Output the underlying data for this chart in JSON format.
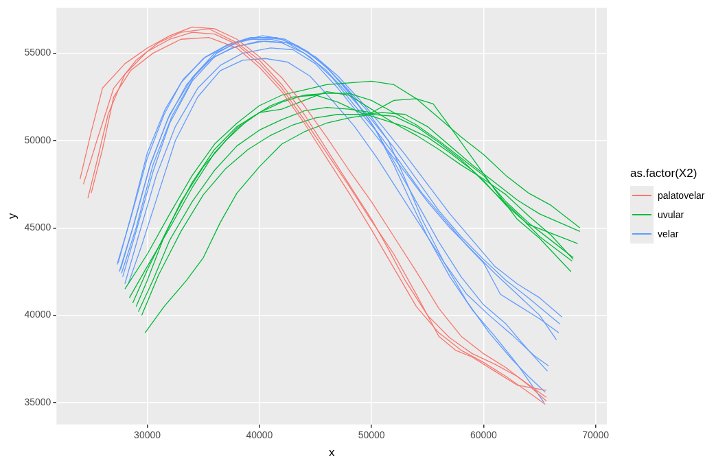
{
  "chart_data": {
    "type": "line",
    "xlabel": "x",
    "ylabel": "y",
    "legend_title": "as.factor(X2)",
    "legend": "right",
    "grid": true,
    "marker": "none",
    "line_style": "solid",
    "xlim": [
      21900,
      71000
    ],
    "ylim": [
      33750,
      57600
    ],
    "xticks": [
      30000,
      40000,
      50000,
      60000,
      70000
    ],
    "yticks": [
      35000,
      40000,
      45000,
      50000,
      55000
    ],
    "series": [
      {
        "name": "palatovelar",
        "color": "#f8766d",
        "x": [
          24000,
          25000,
          26000,
          28000,
          30000,
          32000,
          34000,
          36000,
          38000,
          40000,
          42000,
          44000,
          46000,
          48000,
          50000,
          52000,
          54000,
          56000,
          58000,
          60000,
          62000,
          64000,
          65600
        ],
        "values": [
          47800,
          50500,
          53000,
          54400,
          55300,
          56000,
          56500,
          56400,
          55800,
          54800,
          53600,
          52000,
          50200,
          48300,
          46500,
          44500,
          42500,
          40400,
          38800,
          37800,
          37000,
          36000,
          35100
        ]
      },
      {
        "color": "#f8766d",
        "x": [
          24300,
          25500,
          27000,
          29000,
          31000,
          33000,
          35500,
          38000,
          40000,
          42000,
          44000,
          46000,
          48000,
          50000,
          51500,
          53000,
          55000,
          57000,
          59000,
          61000,
          63000,
          65600
        ],
        "values": [
          47500,
          50000,
          53000,
          54600,
          55600,
          56200,
          56400,
          55600,
          54600,
          53200,
          51500,
          49500,
          47500,
          45500,
          43800,
          42000,
          40000,
          38700,
          37800,
          37200,
          36500,
          35300
        ]
      },
      {
        "color": "#f8766d",
        "x": [
          24700,
          25500,
          26500,
          28000,
          30000,
          32000,
          34000,
          36000,
          38000,
          40000,
          42000,
          44000,
          46000,
          48000,
          50000,
          52000,
          54000,
          56000,
          57500,
          59000,
          61000,
          63000,
          65600
        ],
        "values": [
          46700,
          48800,
          51500,
          53800,
          55100,
          55800,
          56200,
          56100,
          55500,
          54400,
          53000,
          51200,
          49300,
          47400,
          45400,
          43500,
          41200,
          38800,
          38000,
          37600,
          36800,
          36000,
          35700
        ]
      },
      {
        "color": "#f8766d",
        "x": [
          25000,
          26000,
          27000,
          28500,
          30500,
          33000,
          35500,
          38000,
          40000,
          42000,
          44000,
          46000,
          48000,
          50000,
          52000,
          54000,
          56000,
          58000,
          60000,
          62000,
          64000,
          65500
        ],
        "values": [
          47000,
          49500,
          52500,
          54000,
          55000,
          55800,
          55900,
          55300,
          54200,
          52800,
          51000,
          49000,
          47000,
          44900,
          42700,
          40500,
          39000,
          38000,
          37300,
          36500,
          35600,
          34900
        ]
      },
      {
        "name": "uvular",
        "color": "#00ba38",
        "x": [
          28000,
          30000,
          32000,
          34000,
          36000,
          38000,
          40000,
          42000,
          44000,
          46000,
          48000,
          50000,
          52000,
          54000,
          56000,
          58000,
          60000,
          62000,
          64000,
          66000,
          68600
        ],
        "values": [
          41500,
          43500,
          45800,
          48000,
          49800,
          51000,
          52000,
          52600,
          52900,
          53200,
          53300,
          53400,
          53200,
          52400,
          51300,
          50200,
          49200,
          48000,
          47000,
          46300,
          45000
        ]
      },
      {
        "color": "#00ba38",
        "x": [
          28400,
          30000,
          32000,
          34000,
          36000,
          38000,
          40000,
          42000,
          44000,
          46000,
          48000,
          50000,
          52000,
          54000,
          56000,
          58000,
          60000,
          62000,
          64000,
          66000,
          68000
        ],
        "values": [
          41000,
          42800,
          45000,
          47300,
          49300,
          50700,
          51600,
          52200,
          52600,
          52700,
          52700,
          52300,
          51600,
          50900,
          50000,
          49000,
          48000,
          46500,
          45300,
          44300,
          43300
        ]
      },
      {
        "color": "#00ba38",
        "x": [
          29000,
          30000,
          31500,
          33000,
          35000,
          37000,
          39000,
          41000,
          43000,
          45000,
          47000,
          49000,
          51000,
          53000,
          55000,
          57000,
          59000,
          61000,
          63000,
          65000,
          67900
        ],
        "values": [
          40500,
          42000,
          44500,
          46500,
          48500,
          50000,
          51200,
          52000,
          52500,
          52600,
          52200,
          51600,
          51200,
          50800,
          50200,
          49300,
          48300,
          47000,
          45800,
          44500,
          43100
        ]
      },
      {
        "color": "#00ba38",
        "x": [
          29200,
          30500,
          32000,
          34000,
          36000,
          38000,
          40000,
          42000,
          44000,
          46000,
          48000,
          50000,
          52000,
          54000,
          55500,
          57000,
          59000,
          61000,
          63000,
          65000,
          67800
        ],
        "values": [
          40200,
          42000,
          44300,
          46500,
          48300,
          49700,
          50600,
          51200,
          51700,
          51900,
          51800,
          51600,
          52300,
          52400,
          52100,
          50800,
          49000,
          47200,
          45500,
          44400,
          42500
        ]
      },
      {
        "color": "#00ba38",
        "x": [
          29500,
          31000,
          33000,
          35000,
          37000,
          39000,
          41000,
          43000,
          45000,
          47000,
          49000,
          51000,
          53000,
          55000,
          57000,
          59000,
          61000,
          63000,
          65000,
          68600
        ],
        "values": [
          40000,
          42300,
          44800,
          46900,
          48400,
          49500,
          50300,
          50900,
          51300,
          51500,
          51500,
          51600,
          51500,
          50800,
          49700,
          48600,
          47600,
          46600,
          45800,
          44800
        ]
      },
      {
        "color": "#00ba38",
        "x": [
          29800,
          31500,
          33500,
          35000,
          36500,
          38000,
          40000,
          42000,
          44000,
          46000,
          48000,
          50000,
          52000,
          54000,
          56000,
          58000,
          60000,
          62000,
          64000,
          66000,
          68400
        ],
        "values": [
          39000,
          40500,
          42000,
          43300,
          45300,
          47000,
          48500,
          49800,
          50500,
          51000,
          51300,
          51500,
          51400,
          50800,
          49900,
          48900,
          47700,
          46300,
          45200,
          44700,
          44100
        ]
      },
      {
        "color": "#00ba38",
        "x": [
          28700,
          30000,
          32000,
          34000,
          36000,
          38000,
          40000,
          42000,
          44000,
          46000,
          48000,
          50000,
          52000,
          54000,
          56000,
          58000,
          60000,
          62000,
          64000,
          66000,
          68000
        ],
        "values": [
          40700,
          42600,
          45200,
          47600,
          49500,
          50800,
          51600,
          51800,
          52300,
          52800,
          52600,
          51800,
          51000,
          50300,
          49500,
          48600,
          47800,
          46900,
          45700,
          44600,
          43200
        ]
      },
      {
        "name": "velar",
        "color": "#619cff",
        "x": [
          27300,
          28500,
          30000,
          31500,
          33000,
          35000,
          37000,
          39000,
          41000,
          43000,
          45000,
          47000,
          49000,
          51000,
          53000,
          55000,
          57000,
          59000,
          61000,
          63000,
          65000,
          67000
        ],
        "values": [
          42900,
          45500,
          49000,
          51500,
          53300,
          54700,
          55400,
          55800,
          55800,
          55500,
          54800,
          53700,
          52300,
          50800,
          49200,
          47500,
          45800,
          44300,
          42800,
          41800,
          41000,
          39900
        ]
      },
      {
        "color": "#619cff",
        "x": [
          27500,
          28700,
          30200,
          31800,
          33500,
          35500,
          37500,
          40000,
          42000,
          44000,
          46000,
          48000,
          50000,
          52000,
          54000,
          56000,
          58000,
          60000,
          62000,
          64000,
          66800
        ],
        "values": [
          42500,
          45000,
          48500,
          51200,
          53200,
          54600,
          55300,
          55700,
          55600,
          55000,
          54000,
          52600,
          51200,
          49600,
          47800,
          46000,
          44500,
          43200,
          42000,
          41000,
          39500
        ]
      },
      {
        "color": "#619cff",
        "x": [
          27800,
          29000,
          30500,
          32000,
          34000,
          36000,
          38000,
          40500,
          42500,
          44500,
          46500,
          48500,
          50500,
          52500,
          54500,
          56500,
          58500,
          60000,
          61500,
          63000,
          65000,
          66700
        ],
        "values": [
          42200,
          44800,
          48200,
          51000,
          53400,
          54800,
          55400,
          55700,
          55600,
          54800,
          53600,
          52000,
          50500,
          48800,
          47000,
          45500,
          44000,
          43000,
          41200,
          40600,
          39800,
          39000
        ]
      },
      {
        "color": "#619cff",
        "x": [
          28000,
          29200,
          30800,
          32500,
          34500,
          36500,
          38500,
          41000,
          43000,
          45000,
          47000,
          49000,
          51000,
          53000,
          55000,
          57000,
          59000,
          61000,
          63000,
          65000,
          66500
        ],
        "values": [
          41800,
          44500,
          48000,
          50800,
          53000,
          54300,
          55000,
          55300,
          55200,
          54400,
          53000,
          51400,
          49800,
          48200,
          46500,
          45000,
          43700,
          42400,
          41200,
          40000,
          38600
        ]
      },
      {
        "color": "#619cff",
        "x": [
          28300,
          29500,
          31000,
          32500,
          34500,
          36500,
          38500,
          40500,
          42500,
          44500,
          46500,
          48500,
          50500,
          52500,
          54500,
          56500,
          58500,
          60500,
          62500,
          64500,
          65800
        ],
        "values": [
          41800,
          44000,
          47000,
          50000,
          52500,
          54000,
          54600,
          54700,
          54500,
          53700,
          52300,
          50800,
          49000,
          47000,
          45000,
          43000,
          41200,
          40000,
          38900,
          37700,
          37100
        ]
      },
      {
        "color": "#619cff",
        "x": [
          27600,
          28800,
          30300,
          32000,
          34000,
          36000,
          38000,
          40000,
          42000,
          44000,
          46000,
          48000,
          50000,
          52000,
          54000,
          56000,
          58000,
          60000,
          62000,
          64000,
          65700
        ],
        "values": [
          42600,
          45200,
          48700,
          51500,
          53600,
          55000,
          55600,
          55900,
          55800,
          55200,
          54200,
          52800,
          51000,
          48800,
          46500,
          44200,
          42200,
          40600,
          39500,
          38000,
          36800
        ]
      },
      {
        "color": "#619cff",
        "x": [
          27400,
          28600,
          30000,
          31600,
          33200,
          35200,
          37200,
          39200,
          41500,
          43500,
          45500,
          47500,
          49500,
          51500,
          53000,
          54500,
          56500,
          58500,
          60500,
          62500,
          64000,
          65500
        ],
        "values": [
          43000,
          45800,
          49300,
          51800,
          53500,
          54800,
          55500,
          55900,
          55900,
          55400,
          54500,
          53200,
          51800,
          50000,
          47800,
          45500,
          43000,
          40800,
          39000,
          37500,
          36500,
          35600
        ]
      },
      {
        "color": "#619cff",
        "x": [
          27700,
          29000,
          30500,
          32200,
          34200,
          36200,
          38200,
          40300,
          42300,
          44300,
          46300,
          48300,
          50300,
          52000,
          53500,
          55000,
          57000,
          59000,
          61000,
          63000,
          65400
        ],
        "values": [
          42400,
          45000,
          48600,
          51400,
          53700,
          55000,
          55700,
          56000,
          55800,
          55100,
          54000,
          52500,
          50700,
          48600,
          46500,
          44500,
          42200,
          40300,
          38800,
          37200,
          35000
        ]
      }
    ]
  }
}
